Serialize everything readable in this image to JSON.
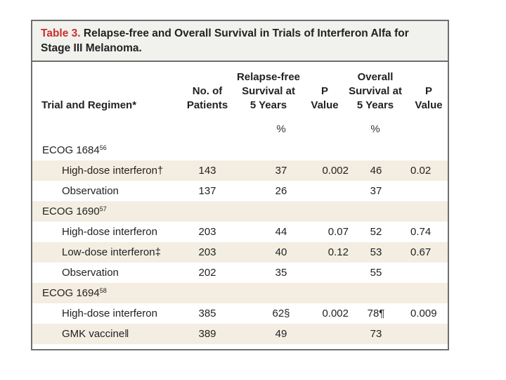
{
  "title": {
    "number": "Table 3.",
    "text": "Relapse-free and Overall Survival in Trials of Interferon Alfa for Stage III Melanoma."
  },
  "headers": {
    "trial": "Trial and Regimen*",
    "patients_1": "No. of",
    "patients_2": "Patients",
    "rfs_1": "Relapse-free",
    "rfs_2": "Survival at",
    "rfs_3": "5 Years",
    "p1_1": "P",
    "p1_2": "Value",
    "os_1": "Overall",
    "os_2": "Survival at",
    "os_3": "5 Years",
    "p2_1": "P",
    "p2_2": "Value",
    "rfs_unit": "%",
    "os_unit": "%"
  },
  "rows": [
    {
      "name": "ECOG 1684",
      "sup": "56",
      "group": true
    },
    {
      "name": "High-dose interferon†",
      "n": "143",
      "rfs": "37",
      "p1": "0.002",
      "os": "46",
      "p2": "0.02"
    },
    {
      "name": "Observation",
      "n": "137",
      "rfs": "26",
      "p1": "",
      "os": "37",
      "p2": ""
    },
    {
      "name": "ECOG 1690",
      "sup": "57",
      "group": true
    },
    {
      "name": "High-dose interferon",
      "n": "203",
      "rfs": "44",
      "p1": "0.07",
      "os": "52",
      "p2": "0.74"
    },
    {
      "name": "Low-dose interferon‡",
      "n": "203",
      "rfs": "40",
      "p1": "0.12",
      "os": "53",
      "p2": "0.67"
    },
    {
      "name": "Observation",
      "n": "202",
      "rfs": "35",
      "p1": "",
      "os": "55",
      "p2": ""
    },
    {
      "name": "ECOG 1694",
      "sup": "58",
      "group": true
    },
    {
      "name": "High-dose interferon",
      "n": "385",
      "rfs": "62§",
      "p1": "0.002",
      "os": "78¶",
      "p2": "0.009"
    },
    {
      "name": "GMK vaccine‖",
      "n": "389",
      "rfs": "49",
      "p1": "",
      "os": "73",
      "p2": ""
    }
  ]
}
